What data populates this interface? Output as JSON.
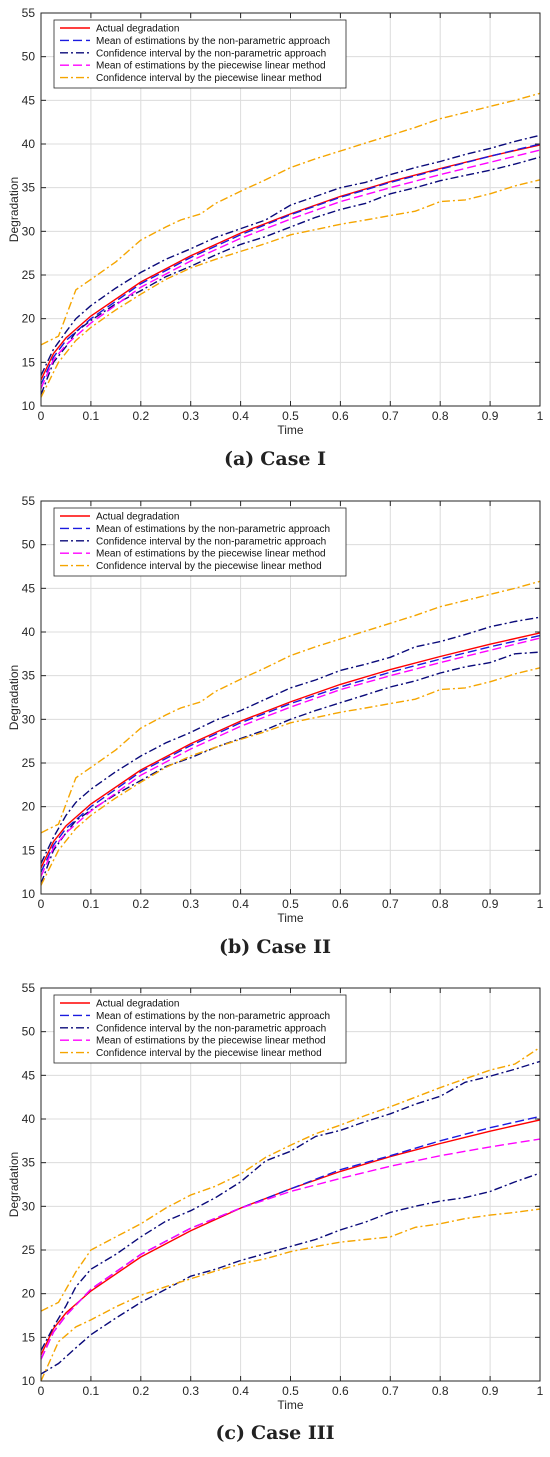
{
  "chart_data": [
    {
      "type": "line",
      "caption_label": "(a)",
      "caption_title": "Case I",
      "xlabel": "Time",
      "ylabel": "Degradation",
      "xlim": [
        0,
        1
      ],
      "ylim": [
        10,
        55
      ],
      "xticks": [
        "0",
        "0.1",
        "0.2",
        "0.3",
        "0.4",
        "0.5",
        "0.6",
        "0.7",
        "0.8",
        "0.9",
        "1"
      ],
      "yticks": [
        "10",
        "15",
        "20",
        "25",
        "30",
        "35",
        "40",
        "45",
        "50",
        "55"
      ],
      "grid": true,
      "legend_position": "top-left",
      "series": [
        {
          "name": "Actual degradation",
          "color": "#ff0000",
          "dash": "solid",
          "x": [
            0,
            0.025,
            0.05,
            0.1,
            0.2,
            0.3,
            0.4,
            0.5,
            0.6,
            0.7,
            0.8,
            0.9,
            1.0
          ],
          "y": [
            13,
            16,
            17.8,
            20.3,
            24.2,
            27.2,
            29.8,
            32.0,
            34.0,
            35.7,
            37.2,
            38.6,
            39.9
          ]
        },
        {
          "name": "Mean of estimations by the non-parametric approach",
          "color": "#1a1adf",
          "dash": "dash",
          "x": [
            0,
            0.025,
            0.05,
            0.1,
            0.2,
            0.3,
            0.4,
            0.5,
            0.6,
            0.7,
            0.8,
            0.9,
            1.0
          ],
          "y": [
            12.5,
            15.6,
            17.5,
            20.0,
            24.0,
            27.0,
            29.6,
            31.9,
            33.9,
            35.6,
            37.1,
            38.6,
            40.0
          ]
        },
        {
          "name": "Confidence interval by the  non-parametric approach",
          "color": "#0a0a7a",
          "dash": "dashdot",
          "x": [
            0,
            0.025,
            0.05,
            0.07,
            0.1,
            0.15,
            0.2,
            0.25,
            0.3,
            0.35,
            0.4,
            0.45,
            0.5,
            0.55,
            0.6,
            0.65,
            0.7,
            0.75,
            0.8,
            0.85,
            0.9,
            0.95,
            1.0
          ],
          "y": [
            13.5,
            16.5,
            18.5,
            20.0,
            21.5,
            23.5,
            25.3,
            26.8,
            28.0,
            29.3,
            30.3,
            31.3,
            33.0,
            34.0,
            35.0,
            35.6,
            36.5,
            37.3,
            38.0,
            38.8,
            39.5,
            40.3,
            41.0
          ]
        },
        {
          "name": "",
          "color": "#0a0a7a",
          "dash": "dashdot",
          "x": [
            0,
            0.025,
            0.05,
            0.07,
            0.1,
            0.15,
            0.2,
            0.25,
            0.3,
            0.35,
            0.4,
            0.45,
            0.5,
            0.55,
            0.6,
            0.65,
            0.7,
            0.75,
            0.8,
            0.85,
            0.9,
            0.95,
            1.0
          ],
          "y": [
            11.3,
            15.0,
            16.8,
            18.5,
            19.8,
            21.7,
            23.2,
            24.8,
            26.0,
            27.3,
            28.5,
            29.4,
            30.5,
            31.6,
            32.5,
            33.2,
            34.3,
            35.0,
            35.8,
            36.4,
            37.0,
            37.7,
            38.5
          ]
        },
        {
          "name": "Mean of estimations by the piecewise linear method",
          "color": "#ff00ff",
          "dash": "dash",
          "x": [
            0,
            0.025,
            0.05,
            0.1,
            0.2,
            0.3,
            0.4,
            0.5,
            0.6,
            0.7,
            0.8,
            0.9,
            1.0
          ],
          "y": [
            12.0,
            15.3,
            17.0,
            19.5,
            23.6,
            26.6,
            29.2,
            31.4,
            33.4,
            35.0,
            36.5,
            37.9,
            39.3
          ]
        },
        {
          "name": "Confidence interval by the piecewise linear method",
          "color": "#f5a500",
          "dash": "dashdot",
          "x": [
            0,
            0.035,
            0.07,
            0.1,
            0.15,
            0.2,
            0.25,
            0.28,
            0.32,
            0.35,
            0.4,
            0.45,
            0.5,
            0.55,
            0.6,
            0.65,
            0.7,
            0.75,
            0.8,
            0.85,
            0.9,
            0.95,
            1.0
          ],
          "y": [
            17.0,
            18.0,
            23.3,
            24.5,
            26.5,
            29.0,
            30.5,
            31.3,
            32.0,
            33.2,
            34.6,
            35.9,
            37.3,
            38.3,
            39.2,
            40.1,
            41.0,
            41.9,
            42.9,
            43.6,
            44.3,
            45.0,
            45.8
          ]
        },
        {
          "name": "",
          "color": "#f5a500",
          "dash": "dashdot",
          "x": [
            0,
            0.035,
            0.07,
            0.1,
            0.15,
            0.2,
            0.25,
            0.3,
            0.35,
            0.4,
            0.45,
            0.5,
            0.55,
            0.6,
            0.65,
            0.7,
            0.75,
            0.8,
            0.85,
            0.9,
            0.95,
            1.0
          ],
          "y": [
            11.0,
            15.0,
            17.5,
            19.0,
            21.0,
            22.8,
            24.5,
            25.8,
            26.8,
            27.7,
            28.6,
            29.6,
            30.2,
            30.8,
            31.3,
            31.8,
            32.3,
            33.4,
            33.6,
            34.3,
            35.2,
            35.9
          ]
        }
      ]
    },
    {
      "type": "line",
      "caption_label": "(b)",
      "caption_title": "Case II",
      "xlabel": "Time",
      "ylabel": "Degradation",
      "xlim": [
        0,
        1
      ],
      "ylim": [
        10,
        55
      ],
      "xticks": [
        "0",
        "0.1",
        "0.2",
        "0.3",
        "0.4",
        "0.5",
        "0.6",
        "0.7",
        "0.8",
        "0.9",
        "1"
      ],
      "yticks": [
        "10",
        "15",
        "20",
        "25",
        "30",
        "35",
        "40",
        "45",
        "50",
        "55"
      ],
      "grid": true,
      "legend_position": "top-left",
      "series": [
        {
          "name": "Actual degradation",
          "color": "#ff0000",
          "dash": "solid",
          "x": [
            0,
            0.025,
            0.05,
            0.1,
            0.2,
            0.3,
            0.4,
            0.5,
            0.6,
            0.7,
            0.8,
            0.9,
            1.0
          ],
          "y": [
            13,
            16,
            17.8,
            20.3,
            24.2,
            27.2,
            29.8,
            32.0,
            34.0,
            35.7,
            37.2,
            38.6,
            39.9
          ]
        },
        {
          "name": "Mean of estimations by the non-parametric approach",
          "color": "#1a1adf",
          "dash": "dash",
          "x": [
            0,
            0.025,
            0.05,
            0.1,
            0.2,
            0.3,
            0.4,
            0.5,
            0.6,
            0.7,
            0.8,
            0.9,
            1.0
          ],
          "y": [
            12.5,
            15.6,
            17.5,
            20.0,
            24.0,
            27.0,
            29.6,
            31.8,
            33.7,
            35.4,
            36.9,
            38.3,
            39.6
          ]
        },
        {
          "name": "Confidence interval by the non-parametric approach",
          "color": "#0a0a7a",
          "dash": "dashdot",
          "x": [
            0,
            0.025,
            0.05,
            0.07,
            0.1,
            0.15,
            0.2,
            0.25,
            0.3,
            0.35,
            0.4,
            0.45,
            0.5,
            0.55,
            0.6,
            0.65,
            0.7,
            0.75,
            0.8,
            0.85,
            0.9,
            0.95,
            1.0
          ],
          "y": [
            13.5,
            16.5,
            19.0,
            20.5,
            22.0,
            24.0,
            25.8,
            27.3,
            28.5,
            29.9,
            31.0,
            32.3,
            33.6,
            34.5,
            35.6,
            36.3,
            37.1,
            38.3,
            38.9,
            39.7,
            40.6,
            41.2,
            41.7
          ]
        },
        {
          "name": "",
          "color": "#0a0a7a",
          "dash": "dashdot",
          "x": [
            0,
            0.025,
            0.05,
            0.07,
            0.1,
            0.15,
            0.2,
            0.25,
            0.3,
            0.35,
            0.4,
            0.45,
            0.5,
            0.55,
            0.6,
            0.65,
            0.7,
            0.75,
            0.8,
            0.85,
            0.9,
            0.95,
            1.0
          ],
          "y": [
            11.2,
            15.0,
            17.0,
            18.4,
            19.6,
            21.4,
            23.0,
            24.6,
            25.6,
            26.8,
            27.8,
            28.8,
            30.0,
            31.0,
            31.9,
            32.8,
            33.7,
            34.4,
            35.3,
            36.0,
            36.5,
            37.5,
            37.7
          ]
        },
        {
          "name": "Mean of estimations by the piecewise linear method",
          "color": "#ff00ff",
          "dash": "dash",
          "x": [
            0,
            0.025,
            0.05,
            0.1,
            0.2,
            0.3,
            0.4,
            0.5,
            0.6,
            0.7,
            0.8,
            0.9,
            1.0
          ],
          "y": [
            12.0,
            15.3,
            17.0,
            19.5,
            23.6,
            26.6,
            29.2,
            31.4,
            33.4,
            35.0,
            36.5,
            37.9,
            39.3
          ]
        },
        {
          "name": "Confidence interval by the piecewise linear method",
          "color": "#f5a500",
          "dash": "dashdot",
          "x": [
            0,
            0.035,
            0.07,
            0.1,
            0.15,
            0.2,
            0.25,
            0.28,
            0.32,
            0.35,
            0.4,
            0.45,
            0.5,
            0.55,
            0.6,
            0.65,
            0.7,
            0.75,
            0.8,
            0.85,
            0.9,
            0.95,
            1.0
          ],
          "y": [
            17.0,
            18.0,
            23.3,
            24.5,
            26.5,
            29.0,
            30.5,
            31.3,
            32.0,
            33.2,
            34.6,
            35.9,
            37.3,
            38.3,
            39.2,
            40.1,
            41.0,
            41.9,
            42.9,
            43.6,
            44.3,
            45.0,
            45.8
          ]
        },
        {
          "name": "",
          "color": "#f5a500",
          "dash": "dashdot",
          "x": [
            0,
            0.035,
            0.07,
            0.1,
            0.15,
            0.2,
            0.25,
            0.3,
            0.35,
            0.4,
            0.45,
            0.5,
            0.55,
            0.6,
            0.65,
            0.7,
            0.75,
            0.8,
            0.85,
            0.9,
            0.95,
            1.0
          ],
          "y": [
            11.0,
            15.0,
            17.5,
            19.0,
            21.0,
            22.8,
            24.5,
            25.8,
            26.8,
            27.7,
            28.6,
            29.6,
            30.2,
            30.8,
            31.3,
            31.8,
            32.3,
            33.4,
            33.6,
            34.3,
            35.2,
            35.9
          ]
        }
      ]
    },
    {
      "type": "line",
      "caption_label": "(c)",
      "caption_title": "Case III",
      "xlabel": "Time",
      "ylabel": "Degradation",
      "xlim": [
        0,
        1
      ],
      "ylim": [
        10,
        55
      ],
      "xticks": [
        "0",
        "0.1",
        "0.2",
        "0.3",
        "0.4",
        "0.5",
        "0.6",
        "0.7",
        "0.8",
        "0.9",
        "1"
      ],
      "yticks": [
        "10",
        "15",
        "20",
        "25",
        "30",
        "35",
        "40",
        "45",
        "50",
        "55"
      ],
      "grid": true,
      "legend_position": "top-left",
      "series": [
        {
          "name": "Actual degradation",
          "color": "#ff0000",
          "dash": "solid",
          "x": [
            0,
            0.025,
            0.05,
            0.1,
            0.2,
            0.3,
            0.4,
            0.5,
            0.6,
            0.7,
            0.8,
            0.9,
            1.0
          ],
          "y": [
            13,
            16,
            17.8,
            20.3,
            24.2,
            27.2,
            29.8,
            32.0,
            34.0,
            35.7,
            37.2,
            38.6,
            39.9
          ]
        },
        {
          "name": "Mean of estimations by the non-parametric approach",
          "color": "#1a1adf",
          "dash": "dash",
          "x": [
            0,
            0.025,
            0.05,
            0.1,
            0.2,
            0.3,
            0.4,
            0.5,
            0.6,
            0.7,
            0.8,
            0.9,
            1.0
          ],
          "y": [
            12.5,
            15.6,
            17.5,
            20.5,
            24.5,
            27.5,
            29.8,
            32.0,
            34.2,
            35.8,
            37.5,
            39.0,
            40.3
          ]
        },
        {
          "name": "Confidence interval by the non-parametric approach",
          "color": "#0a0a7a",
          "dash": "dashdot",
          "x": [
            0,
            0.025,
            0.05,
            0.07,
            0.1,
            0.15,
            0.2,
            0.25,
            0.3,
            0.35,
            0.4,
            0.45,
            0.5,
            0.55,
            0.6,
            0.65,
            0.7,
            0.75,
            0.8,
            0.85,
            0.9,
            0.95,
            1.0
          ],
          "y": [
            13.5,
            16.2,
            18.6,
            20.8,
            22.8,
            24.5,
            26.5,
            28.3,
            29.5,
            31.0,
            32.8,
            35.2,
            36.3,
            38.0,
            38.7,
            39.7,
            40.6,
            41.7,
            42.6,
            44.2,
            44.9,
            45.7,
            46.6
          ]
        },
        {
          "name": "",
          "color": "#0a0a7a",
          "dash": "dashdot",
          "x": [
            0,
            0.035,
            0.07,
            0.1,
            0.15,
            0.2,
            0.25,
            0.3,
            0.35,
            0.4,
            0.45,
            0.5,
            0.55,
            0.6,
            0.65,
            0.7,
            0.75,
            0.8,
            0.85,
            0.9,
            0.95,
            1.0
          ],
          "y": [
            10.8,
            12.0,
            13.8,
            15.3,
            17.2,
            19.0,
            20.5,
            22.0,
            22.8,
            23.8,
            24.6,
            25.4,
            26.2,
            27.3,
            28.2,
            29.3,
            30.0,
            30.6,
            31.0,
            31.7,
            32.8,
            33.8
          ]
        },
        {
          "name": "Mean of estimations by the piecewise linear method",
          "color": "#ff00ff",
          "dash": "dash",
          "x": [
            0,
            0.025,
            0.05,
            0.1,
            0.2,
            0.3,
            0.4,
            0.5,
            0.6,
            0.7,
            0.8,
            0.9,
            1.0
          ],
          "y": [
            12.5,
            15.6,
            17.5,
            20.5,
            24.5,
            27.5,
            29.8,
            31.7,
            33.2,
            34.6,
            35.8,
            36.8,
            37.7
          ]
        },
        {
          "name": "Confidence interval by the piecewise linear method",
          "color": "#f5a500",
          "dash": "dashdot",
          "x": [
            0,
            0.035,
            0.07,
            0.1,
            0.15,
            0.2,
            0.25,
            0.3,
            0.35,
            0.4,
            0.45,
            0.5,
            0.55,
            0.6,
            0.65,
            0.7,
            0.75,
            0.8,
            0.85,
            0.9,
            0.95,
            1.0
          ],
          "y": [
            18.0,
            19.0,
            22.5,
            25.0,
            26.5,
            28.0,
            29.8,
            31.3,
            32.3,
            33.7,
            35.6,
            37.0,
            38.3,
            39.3,
            40.4,
            41.4,
            42.5,
            43.6,
            44.6,
            45.6,
            46.3,
            48.2
          ]
        },
        {
          "name": "",
          "color": "#f5a500",
          "dash": "dashdot",
          "x": [
            0,
            0.035,
            0.07,
            0.1,
            0.15,
            0.2,
            0.25,
            0.3,
            0.35,
            0.4,
            0.45,
            0.5,
            0.55,
            0.6,
            0.65,
            0.7,
            0.75,
            0.8,
            0.85,
            0.9,
            0.95,
            1.0
          ],
          "y": [
            10.0,
            14.5,
            16.2,
            17.0,
            18.5,
            19.8,
            20.8,
            21.7,
            22.6,
            23.4,
            24.0,
            24.8,
            25.4,
            25.9,
            26.2,
            26.5,
            27.6,
            28.0,
            28.6,
            29.0,
            29.3,
            29.7
          ]
        }
      ]
    }
  ]
}
